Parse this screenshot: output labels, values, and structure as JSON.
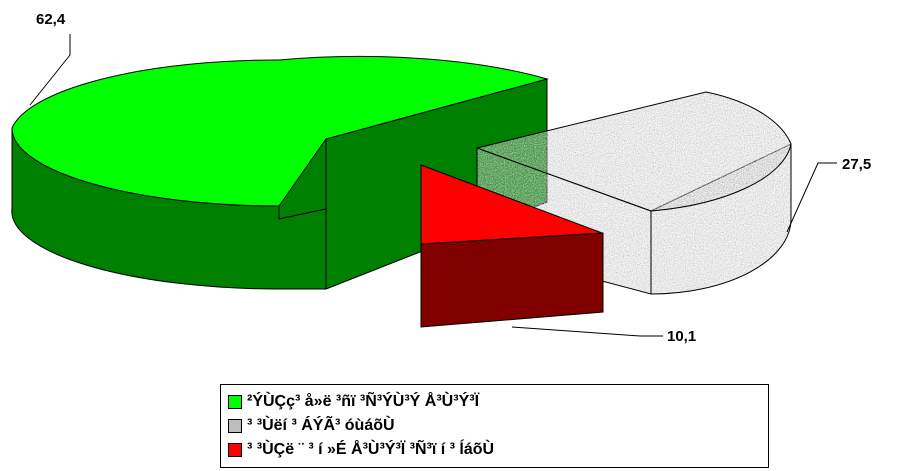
{
  "chart_data": {
    "type": "pie",
    "title": "",
    "slices": [
      {
        "label": "²ÝÙÇç³ å»ë ³ñï ³Ñ³ÝÙ³Ý Å³Ù³Ý³Ï",
        "value": 62.4,
        "value_label": "62,4",
        "color": "#00ff00"
      },
      {
        "label": "³ ³Ùëí ³ ÁÝÃ³ óùáõÙ",
        "value": 27.5,
        "value_label": "27,5",
        "color": "#c0c0c0"
      },
      {
        "label": "³ ³ÙÇë ¨ ³ í »É Å³Ù³Ý³Ï ³Ñ³ï í ³ ĺáõÙ",
        "value": 10.1,
        "value_label": "10,1",
        "color": "#ff0000"
      }
    ],
    "legend": "bottom",
    "style": "3d-exploded"
  }
}
